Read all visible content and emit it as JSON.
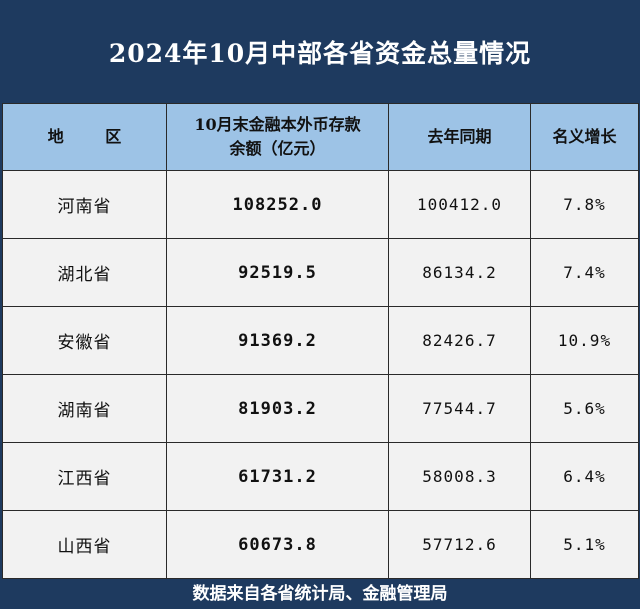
{
  "title": "2024年10月中部各省资金总量情况",
  "table": {
    "headers": {
      "region": "地 区",
      "balance_line1": "10月末金融本外币存款",
      "balance_line2": "余额（亿元）",
      "last_year": "去年同期",
      "growth": "名义增长"
    },
    "rows": [
      {
        "region": "河南省",
        "balance": "108252.0",
        "last_year": "100412.0",
        "growth": "7.8%"
      },
      {
        "region": "湖北省",
        "balance": "92519.5",
        "last_year": "86134.2",
        "growth": "7.4%"
      },
      {
        "region": "安徽省",
        "balance": "91369.2",
        "last_year": "82426.7",
        "growth": "10.9%"
      },
      {
        "region": "湖南省",
        "balance": "81903.2",
        "last_year": "77544.7",
        "growth": "5.6%"
      },
      {
        "region": "江西省",
        "balance": "61731.2",
        "last_year": "58008.3",
        "growth": "6.4%"
      },
      {
        "region": "山西省",
        "balance": "60673.8",
        "last_year": "57712.6",
        "growth": "5.1%"
      }
    ]
  },
  "footer": "数据来自各省统计局、金融管理局",
  "colors": {
    "frame": "#1e3a5f",
    "header_bg": "#9dc3e6",
    "cell_bg": "#f2f2f2"
  }
}
